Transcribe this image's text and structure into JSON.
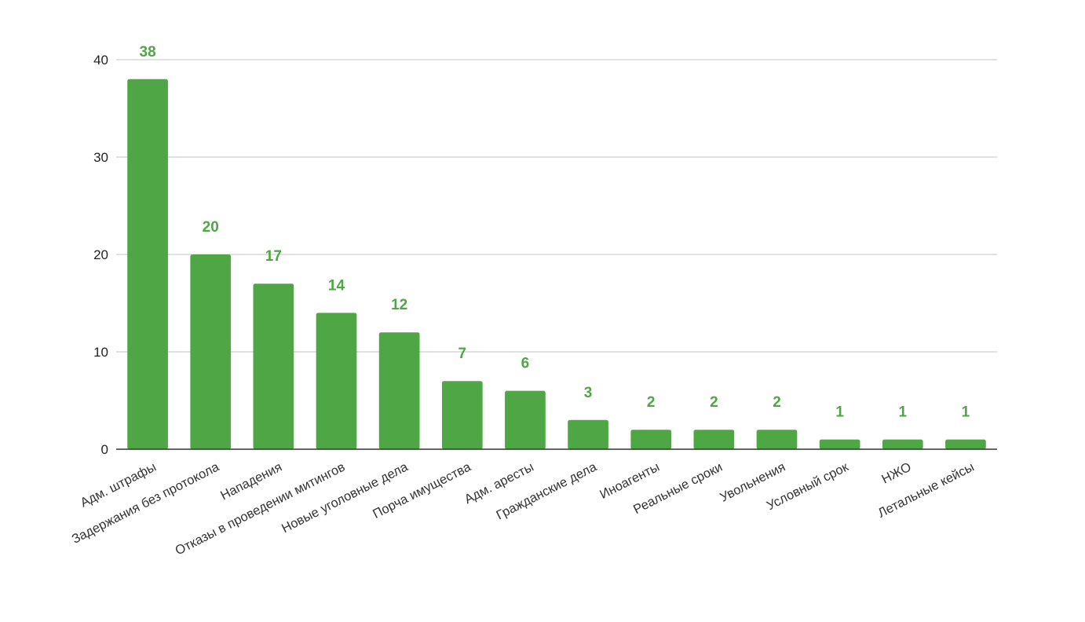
{
  "chart_data": {
    "type": "bar",
    "title": "",
    "xlabel": "",
    "ylabel": "",
    "ylim": [
      0,
      40
    ],
    "yticks": [
      0,
      10,
      20,
      30,
      40
    ],
    "grid": true,
    "bar_color": "#4ea744",
    "label_color": "#4ea744",
    "categories": [
      "Адм. штрафы",
      "Задержания без протокола",
      "Нападения",
      "Отказы в проведении митингов",
      "Новые уголовные дела",
      "Порча имущества",
      "Адм. аресты",
      "Гражданские дела",
      "Иноагенты",
      "Реальные сроки",
      "Увольнения",
      "Условный срок",
      "НЖО",
      "Летальные кейсы"
    ],
    "values": [
      38,
      20,
      17,
      14,
      12,
      7,
      6,
      3,
      2,
      2,
      2,
      1,
      1,
      1
    ]
  }
}
